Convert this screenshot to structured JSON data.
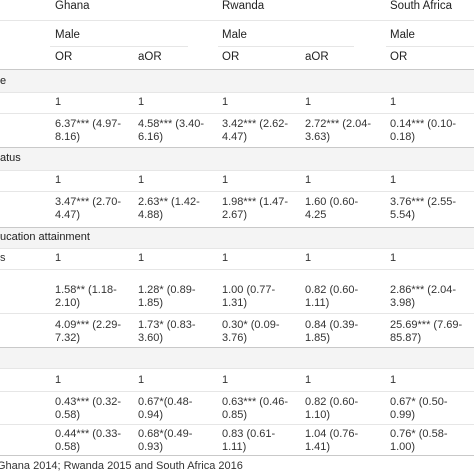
{
  "countries": [
    "Ghana",
    "Rwanda",
    "South Africa"
  ],
  "sub_header": [
    "Male",
    "Male",
    "Male"
  ],
  "col_labels": [
    "OR",
    "aOR",
    "OR",
    "aOR",
    "OR"
  ],
  "sections": [
    {
      "label": "e"
    },
    {
      "label": "atus"
    },
    {
      "label": "ucation attainment"
    },
    {
      "label": ""
    }
  ],
  "row_label_s": "s",
  "rows": [
    {
      "c": [
        "1",
        "1",
        "1",
        "1",
        "1"
      ]
    },
    {
      "c": [
        "6.37*** (4.97-\n8.16)",
        "4.58*** (3.40-\n6.16)",
        "3.42*** (2.62-\n4.47)",
        "2.72*** (2.04-\n3.63)",
        "0.14*** (0.10-\n0.18)"
      ]
    },
    {
      "c": [
        "1",
        "1",
        "1",
        "1",
        "1"
      ]
    },
    {
      "c": [
        "3.47*** (2.70-\n4.47)",
        "2.63** (1.42-\n4.88)",
        "1.98*** (1.47-\n2.67)",
        "1.60 (0.60-\n4.25",
        "3.76*** (2.55-\n5.54)"
      ]
    },
    {
      "c": [
        "1",
        "1",
        "1",
        "1",
        "1"
      ]
    },
    {
      "c": [
        "1.58** (1.18-\n2.10)",
        "1.28* (0.89-\n1.85)",
        "1.00 (0.77-\n1.31)",
        "0.82 (0.60-\n1.11)",
        "2.86*** (2.04-\n3.98)"
      ]
    },
    {
      "c": [
        "4.09*** (2.29-\n7.32)",
        "1.73* (0.83-\n3.60)",
        "0.30* (0.09-\n3.76)",
        "0.84 (0.39-\n1.85)",
        "25.69*** (7.69-\n85.87)"
      ]
    },
    {
      "c": [
        "1",
        "1",
        "1",
        "1",
        "1"
      ]
    },
    {
      "c": [
        "0.43*** (0.32-\n0.58)",
        "0.67*(0.48-\n0.94)",
        "0.63*** (0.46-\n0.85)",
        "0.82 (0.60-\n1.10)",
        "0.67* (0.50-\n0.99)"
      ]
    },
    {
      "c": [
        "0.44*** (0.33-\n0.58)",
        "0.68*(0.49-\n0.93)",
        "0.83 (0.61-\n1.11)",
        "1.04 (0.76-\n1.41)",
        "0.76* (0.58-\n1.00)"
      ]
    }
  ],
  "footnote": "Ghana 2014; Rwanda 2015 and South Africa 2016"
}
